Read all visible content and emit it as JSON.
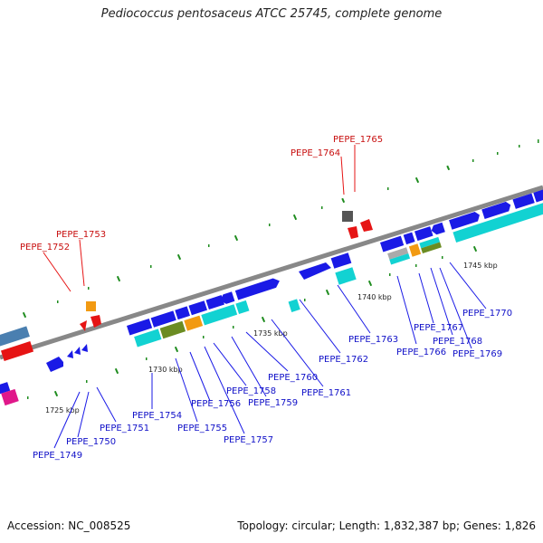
{
  "header": {
    "title": "Pediococcus pentosaceus ATCC 25745, complete genome"
  },
  "footer": {
    "accession": "Accession: NC_008525",
    "summary": "Topology: circular; Length: 1,832,387 bp; Genes: 1,826"
  },
  "colors": {
    "cds_blue": "#1a1ae6",
    "cds_cyan": "#12d2d2",
    "cds_olive": "#6b8c22",
    "cds_orange": "#f29a12",
    "cds_red": "#e61414",
    "cds_grey": "#555555",
    "cds_steel": "#4a7fb0",
    "cds_magenta": "#e0188a",
    "label_blue": "#1010c8",
    "label_red": "#c81010",
    "backbone": "#888888",
    "tick_green": "#1e8c1e"
  },
  "map": {
    "kbp_markers": [
      "1725 kbp",
      "1730 kbp",
      "1735 kbp",
      "1740 kbp",
      "1745 kbp"
    ],
    "forward_genes": [
      "PEPE_1765",
      "PEPE_1764",
      "PEPE_1753",
      "PEPE_1752"
    ],
    "reverse_genes": [
      "PEPE_1749",
      "PEPE_1750",
      "PEPE_1751",
      "PEPE_1754",
      "PEPE_1755",
      "PEPE_1756",
      "PEPE_1757",
      "PEPE_1758",
      "PEPE_1759",
      "PEPE_1760",
      "PEPE_1761",
      "PEPE_1762",
      "PEPE_1763",
      "PEPE_1766",
      "PEPE_1767",
      "PEPE_1768",
      "PEPE_1769",
      "PEPE_1770"
    ]
  }
}
